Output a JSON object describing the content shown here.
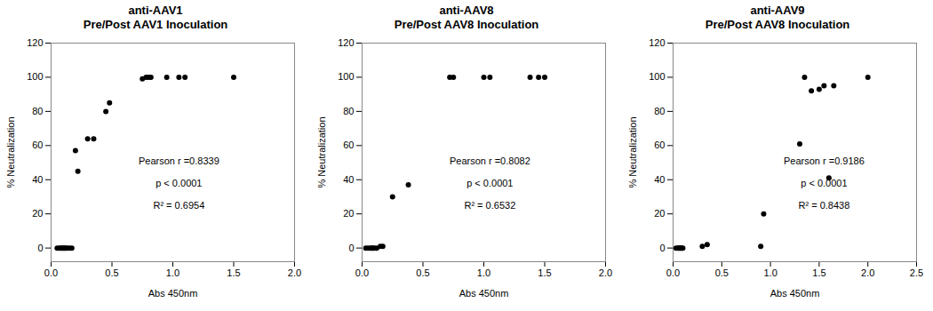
{
  "chart_data": [
    {
      "type": "scatter",
      "title": "anti-AAV1",
      "subtitle": "Pre/Post AAV1 Inoculation",
      "xlabel": "Abs 450nm",
      "ylabel": "% Neutralization",
      "color": "#000000",
      "x": [
        0.05,
        0.07,
        0.08,
        0.09,
        0.1,
        0.11,
        0.12,
        0.13,
        0.15,
        0.17,
        0.2,
        0.22,
        0.3,
        0.35,
        0.45,
        0.48,
        0.75,
        0.78,
        0.8,
        0.82,
        0.95,
        1.05,
        1.1,
        1.5
      ],
      "values": [
        0,
        0,
        0,
        0,
        0,
        0,
        0,
        0,
        0,
        0,
        57,
        45,
        64,
        64,
        80,
        85,
        99,
        100,
        100,
        100,
        100,
        100,
        100,
        100
      ],
      "xlim": [
        0,
        2.0
      ],
      "xticks": [
        {
          "value": 0,
          "label": "0.0"
        },
        0.5,
        {
          "value": 1,
          "label": "1.0"
        },
        1.5,
        {
          "value": 2,
          "label": "2.0"
        }
      ],
      "ylim": [
        -8,
        120
      ],
      "yticks": [
        0,
        20,
        40,
        60,
        80,
        100,
        120
      ],
      "annotations": [
        {
          "text": "Pearson r =0.8339",
          "x": 1.05,
          "y": 51
        },
        {
          "text": "p < 0.0001",
          "x": 1.05,
          "y": 38
        },
        {
          "text": "R² = 0.6954",
          "x": 1.05,
          "y": 25
        }
      ]
    },
    {
      "type": "scatter",
      "title": "anti-AAV8",
      "subtitle": "Pre/Post AAV8 Inoculation",
      "xlabel": "Abs 450nm",
      "ylabel": "% Neutralization",
      "color": "#000000",
      "x": [
        0.03,
        0.05,
        0.07,
        0.08,
        0.09,
        0.1,
        0.12,
        0.15,
        0.17,
        0.25,
        0.38,
        0.72,
        0.75,
        1.0,
        1.05,
        1.38,
        1.45,
        1.5
      ],
      "values": [
        0,
        0,
        0,
        0,
        0,
        0,
        0,
        1,
        1,
        30,
        37,
        100,
        100,
        100,
        100,
        100,
        100,
        100
      ],
      "xlim": [
        0,
        2.0
      ],
      "xticks": [
        {
          "value": 0,
          "label": "0.0"
        },
        0.5,
        {
          "value": 1,
          "label": "1.0"
        },
        1.5,
        {
          "value": 2,
          "label": "2.0"
        }
      ],
      "ylim": [
        -8,
        120
      ],
      "yticks": [
        0,
        20,
        40,
        60,
        80,
        100,
        120
      ],
      "annotations": [
        {
          "text": "Pearson r =0.8082",
          "x": 1.05,
          "y": 51
        },
        {
          "text": "p < 0.0001",
          "x": 1.05,
          "y": 38
        },
        {
          "text": "R² = 0.6532",
          "x": 1.05,
          "y": 25
        }
      ]
    },
    {
      "type": "scatter",
      "title": "anti-AAV9",
      "subtitle": "Pre/Post AAV8 Inoculation",
      "xlabel": "Abs 450nm",
      "ylabel": "% Neutralization",
      "color": "#000000",
      "x": [
        0.03,
        0.05,
        0.06,
        0.07,
        0.08,
        0.09,
        0.1,
        0.3,
        0.35,
        0.9,
        0.93,
        1.3,
        1.35,
        1.42,
        1.5,
        1.55,
        1.6,
        1.65,
        2.0
      ],
      "values": [
        0,
        0,
        0,
        0,
        0,
        0,
        0,
        1,
        2,
        1,
        20,
        61,
        100,
        92,
        93,
        95,
        41,
        95,
        100
      ],
      "xlim": [
        0,
        2.5
      ],
      "xticks": [
        {
          "value": 0,
          "label": "0.0"
        },
        0.5,
        {
          "value": 1,
          "label": "1.0"
        },
        1.5,
        {
          "value": 2,
          "label": "2.0"
        },
        2.5
      ],
      "ylim": [
        -8,
        120
      ],
      "yticks": [
        0,
        20,
        40,
        60,
        80,
        100,
        120
      ],
      "annotations": [
        {
          "text": "Pearson r =0.9186",
          "x": 1.55,
          "y": 51
        },
        {
          "text": "p < 0.0001",
          "x": 1.55,
          "y": 38
        },
        {
          "text": "R² = 0.8438",
          "x": 1.55,
          "y": 25
        }
      ]
    }
  ]
}
